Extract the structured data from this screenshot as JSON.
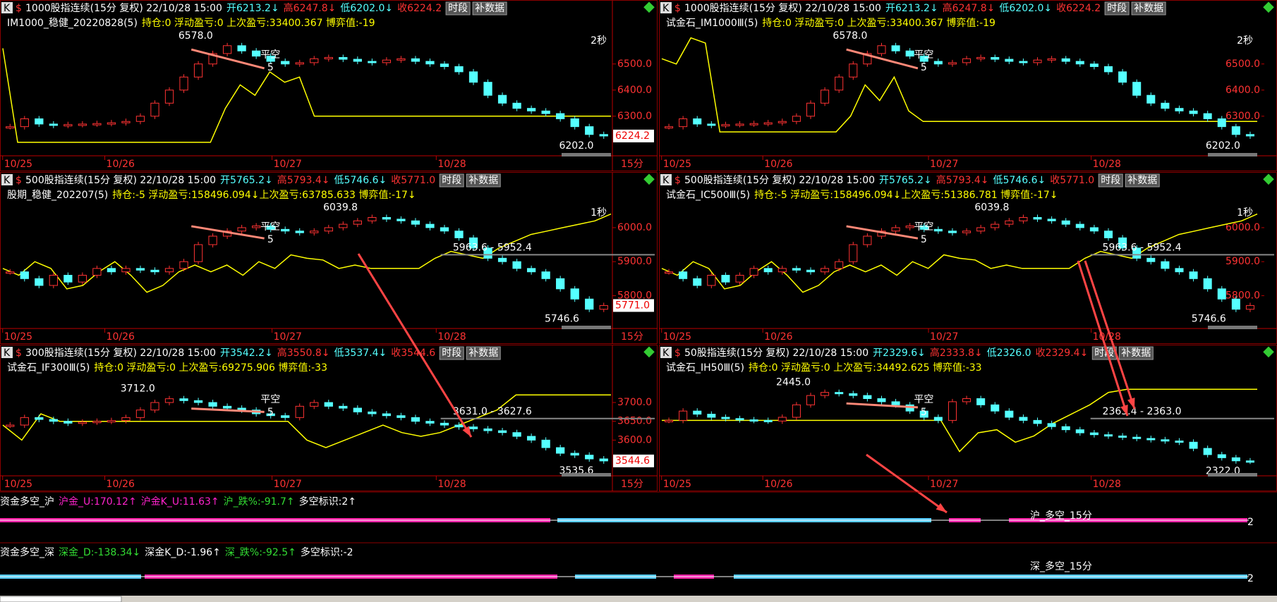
{
  "panels": [
    {
      "code": "K",
      "title": "1000股指连续(15分 复权) 22/10/28 15:00",
      "open": "开6213.2↓",
      "high": "高6247.8↓",
      "low": "低6202.0↓",
      "close": "收6224.2",
      "buttons": [
        "时段",
        "补数据"
      ],
      "strategy": "IM1000_稳健_20220828(5)",
      "stats": "持仓:0 浮动盈亏:0 上次盈亏:33400.367 博弈值:-19",
      "dates": [
        "10/25",
        "10/26",
        "10/27",
        "10/28"
      ],
      "ylim": [
        6170,
        6610
      ],
      "yticks": [
        {
          "value": 6500,
          "label": "6500.0"
        },
        {
          "value": 6400,
          "label": "6400.0"
        },
        {
          "value": 6300,
          "label": "6300.0"
        }
      ],
      "hi_label": "6578.0",
      "lo_label": "6202.0",
      "last_label": "6224.2",
      "period": "15分",
      "corner": "2秒",
      "signals": [
        "平空",
        "5"
      ],
      "closes": [
        6260,
        6290,
        6270,
        6265,
        6268,
        6270,
        6272,
        6275,
        6280,
        6300,
        6350,
        6400,
        6450,
        6500,
        6540,
        6570,
        6550,
        6530,
        6510,
        6500,
        6505,
        6520,
        6525,
        6518,
        6510,
        6505,
        6515,
        6520,
        6510,
        6500,
        6490,
        6470,
        6430,
        6380,
        6350,
        6330,
        6320,
        6310,
        6290,
        6260,
        6230,
        6224.2
      ],
      "indicator": [
        6560,
        6200,
        6200,
        6200,
        6200,
        6200,
        6200,
        6200,
        6200,
        6200,
        6200,
        6200,
        6200,
        6200,
        6200,
        6330,
        6420,
        6380,
        6470,
        6430,
        6450,
        6300,
        6300,
        6300,
        6300,
        6300,
        6300,
        6300,
        6300,
        6300,
        6300,
        6300,
        6300,
        6300,
        6300,
        6300,
        6300,
        6300,
        6300,
        6300,
        6300,
        6300
      ]
    },
    {
      "code": "K",
      "title": "1000股指连续(15分 复权) 22/10/28 15:00",
      "open": "开6213.2↓",
      "high": "高6247.8↓",
      "low": "低6202.0↓",
      "close": "收6224.2",
      "buttons": [
        "时段",
        "补数据"
      ],
      "strategy": "试金石_IM1000Ⅲ(5)",
      "stats": "持仓:0 浮动盈亏:0 上次盈亏:33400.367 博弈值:-19",
      "dates": [
        "10/25",
        "10/26",
        "10/27",
        "10/28"
      ],
      "ylim": [
        6170,
        6610
      ],
      "yticks": [
        {
          "value": 6500,
          "label": "6500.0"
        },
        {
          "value": 6400,
          "label": "6400.0"
        },
        {
          "value": 6300,
          "label": "6300.0"
        }
      ],
      "hi_label": "6578.0",
      "lo_label": "6202.0",
      "corner": "2秒",
      "signals": [
        "平空",
        "5"
      ],
      "closes": [
        6260,
        6290,
        6270,
        6265,
        6268,
        6270,
        6272,
        6275,
        6280,
        6300,
        6350,
        6400,
        6450,
        6500,
        6540,
        6570,
        6550,
        6530,
        6510,
        6500,
        6505,
        6520,
        6525,
        6518,
        6510,
        6505,
        6515,
        6520,
        6510,
        6500,
        6490,
        6470,
        6430,
        6380,
        6350,
        6330,
        6320,
        6310,
        6290,
        6260,
        6230,
        6224.2
      ],
      "indicator": [
        6520,
        6500,
        6600,
        6580,
        6240,
        6240,
        6240,
        6240,
        6240,
        6240,
        6240,
        6240,
        6240,
        6300,
        6420,
        6360,
        6450,
        6320,
        6280,
        6280,
        6280,
        6280,
        6280,
        6280,
        6280,
        6280,
        6280,
        6280,
        6280,
        6280,
        6280,
        6280,
        6280,
        6280,
        6280,
        6280,
        6280,
        6280,
        6280,
        6280,
        6280,
        6280
      ]
    },
    {
      "code": "K",
      "title": "500股指连续(15分 复权) 22/10/28 15:00",
      "open": "开5765.2↓",
      "high": "高5793.4↓",
      "low": "低5746.6↓",
      "close": "收5771.0",
      "buttons": [
        "时段",
        "补数据"
      ],
      "strategy": "股期_稳健_202207(5)",
      "stats": "持仓:-5 浮动盈亏:158496.094↓上次盈亏:63785.633 博弈值:-17↓",
      "dates": [
        "10/25",
        "10/26",
        "10/27",
        "10/28"
      ],
      "ylim": [
        5720,
        6060
      ],
      "yticks": [
        {
          "value": 6000,
          "label": "6000.0"
        },
        {
          "value": 5900,
          "label": "5900.0"
        },
        {
          "value": 5800,
          "label": "5800.0"
        }
      ],
      "hi_label": "6039.8",
      "lo_label": "5746.6",
      "last_label": "5771.0",
      "period": "15分",
      "corner": "1秒",
      "range": "5963.6 - 5952.4",
      "signals": [
        "平空",
        "5"
      ],
      "closes": [
        5870,
        5850,
        5830,
        5860,
        5840,
        5860,
        5880,
        5870,
        5880,
        5875,
        5870,
        5880,
        5900,
        5950,
        5975,
        5990,
        6000,
        6005,
        5995,
        5990,
        5985,
        5990,
        6000,
        6010,
        6020,
        6030,
        6025,
        6020,
        6010,
        6000,
        5990,
        5970,
        5940,
        5910,
        5900,
        5880,
        5870,
        5850,
        5820,
        5790,
        5760,
        5771
      ],
      "indicator": [
        5880,
        5860,
        5900,
        5880,
        5820,
        5830,
        5870,
        5900,
        5860,
        5810,
        5830,
        5870,
        5890,
        5870,
        5890,
        5860,
        5900,
        5880,
        5920,
        5910,
        5905,
        5880,
        5890,
        5880,
        5880,
        5880,
        5880,
        5910,
        5930,
        5920,
        5910,
        5940,
        5960,
        5980,
        5990,
        6000,
        6010,
        6020,
        6040
      ]
    },
    {
      "code": "K",
      "title": "500股指连续(15分 复权) 22/10/28 15:00",
      "open": "开5765.2↓",
      "high": "高5793.4↓",
      "low": "低5746.6↓",
      "close": "收5771.0",
      "buttons": [
        "时段",
        "补数据"
      ],
      "strategy": "试金石_IC500Ⅲ(5)",
      "stats": "持仓:-5 浮动盈亏:158496.094↓上次盈亏:51386.781 博弈值:-17↓",
      "dates": [
        "10/25",
        "10/26",
        "10/27",
        "10/28"
      ],
      "ylim": [
        5720,
        6060
      ],
      "yticks": [
        {
          "value": 6000,
          "label": "6000.0"
        },
        {
          "value": 5900,
          "label": "5900.0"
        },
        {
          "value": 5800,
          "label": "5800.0"
        }
      ],
      "hi_label": "6039.8",
      "lo_label": "5746.6",
      "corner": "1秒",
      "range": "5963.6 - 5952.4",
      "signals": [
        "平空",
        "5"
      ],
      "closes": [
        5870,
        5850,
        5830,
        5860,
        5840,
        5860,
        5880,
        5870,
        5880,
        5875,
        5870,
        5880,
        5900,
        5950,
        5975,
        5990,
        6000,
        6005,
        5995,
        5990,
        5985,
        5990,
        6000,
        6010,
        6020,
        6030,
        6025,
        6020,
        6010,
        6000,
        5990,
        5970,
        5940,
        5910,
        5900,
        5880,
        5870,
        5850,
        5820,
        5790,
        5760,
        5771
      ],
      "indicator": [
        5880,
        5860,
        5900,
        5880,
        5820,
        5830,
        5870,
        5900,
        5860,
        5810,
        5830,
        5870,
        5890,
        5870,
        5890,
        5860,
        5900,
        5880,
        5920,
        5910,
        5905,
        5880,
        5890,
        5880,
        5880,
        5880,
        5880,
        5910,
        5930,
        5920,
        5910,
        5940,
        5960,
        5980,
        5990,
        6000,
        6010,
        6020,
        6040
      ]
    },
    {
      "code": "K",
      "title": "300股指连续(15分 复权) 22/10/28 15:00",
      "open": "开3542.2↓",
      "high": "高3550.8↓",
      "low": "低3537.4↓",
      "close": "收3544.6",
      "buttons": [
        "时段",
        "补数据"
      ],
      "strategy": "试金石_IF300Ⅲ(5)",
      "stats": "持仓:0 浮动盈亏:0 上次盈亏:69275.906 博弈值:-33",
      "dates": [
        "10/25",
        "10/26",
        "10/27",
        "10/28"
      ],
      "ylim": [
        3520,
        3760
      ],
      "yticks": [
        {
          "value": 3700,
          "label": "3700.0"
        },
        {
          "value": 3650,
          "label": "3650.0"
        },
        {
          "value": 3600,
          "label": "3600.0"
        }
      ],
      "hi_label": "3712.0",
      "lo_label": "3535.6",
      "last_label": "3544.6",
      "period": "15分",
      "range": "3631.0 - 3627.6",
      "signals": [
        "平空",
        "5"
      ],
      "closes": [
        3640,
        3660,
        3655,
        3650,
        3645,
        3648,
        3650,
        3652,
        3660,
        3680,
        3700,
        3710,
        3705,
        3700,
        3690,
        3685,
        3680,
        3670,
        3665,
        3660,
        3690,
        3700,
        3690,
        3685,
        3675,
        3670,
        3665,
        3660,
        3650,
        3645,
        3640,
        3635,
        3630,
        3625,
        3620,
        3610,
        3600,
        3580,
        3565,
        3560,
        3550,
        3544.6
      ],
      "indicator": [
        3640,
        3600,
        3670,
        3650,
        3650,
        3650,
        3650,
        3650,
        3650,
        3650,
        3650,
        3650,
        3650,
        3650,
        3650,
        3650,
        3600,
        3580,
        3600,
        3620,
        3640,
        3620,
        3610,
        3620,
        3640,
        3660,
        3680,
        3720,
        3720,
        3720,
        3720,
        3720,
        3720
      ]
    },
    {
      "code": "K",
      "title": "50股指连续(15分 复权) 22/10/28 15:00",
      "open": "开2329.6↓",
      "high": "高2333.8↓",
      "low": "低2326.0",
      "close": "收2329.4↓",
      "buttons": [
        "时段",
        "补数据"
      ],
      "strategy": "试金石_IH50Ⅲ(5)",
      "stats": "持仓:0 浮动盈亏:0 上次盈亏:34492.625 博弈值:-33",
      "dates": [
        "10/25",
        "10/26",
        "10/27",
        "10/28"
      ],
      "ylim": [
        2315,
        2460
      ],
      "yticks": [],
      "hi_label": "2445.0",
      "lo_label": "2322.0",
      "range": "2363.4 - 2363.0",
      "signals": [
        "平空",
        "5"
      ],
      "closes": [
        2395,
        2410,
        2405,
        2400,
        2398,
        2396,
        2395,
        2394,
        2400,
        2420,
        2435,
        2440,
        2438,
        2435,
        2430,
        2425,
        2420,
        2410,
        2400,
        2395,
        2425,
        2430,
        2420,
        2410,
        2400,
        2395,
        2390,
        2385,
        2380,
        2375,
        2372,
        2370,
        2368,
        2366,
        2364,
        2362,
        2360,
        2350,
        2340,
        2335,
        2330,
        2329.4
      ],
      "indicator": [
        2395,
        2395,
        2395,
        2395,
        2395,
        2395,
        2395,
        2395,
        2395,
        2395,
        2395,
        2395,
        2395,
        2395,
        2395,
        2395,
        2345,
        2375,
        2380,
        2360,
        2370,
        2390,
        2405,
        2420,
        2440,
        2445,
        2445,
        2445,
        2445,
        2445,
        2445,
        2445,
        2445
      ]
    }
  ],
  "indicators": [
    {
      "items": [
        "资金多空_沪",
        "沪金_U:170.12↑",
        "沪金K_U:11.63↑",
        "沪_跌%:-91.7↑",
        "多空标识:2↑"
      ],
      "label": "沪_多空_15分",
      "end": "2"
    },
    {
      "items": [
        "资金多空_深",
        "深金_D:-138.34↓",
        "深金K_D:-1.96↑",
        "深_跌%:-92.5↑",
        "多空标识:-2"
      ],
      "label": "深_多空_15分",
      "end": "2"
    }
  ]
}
